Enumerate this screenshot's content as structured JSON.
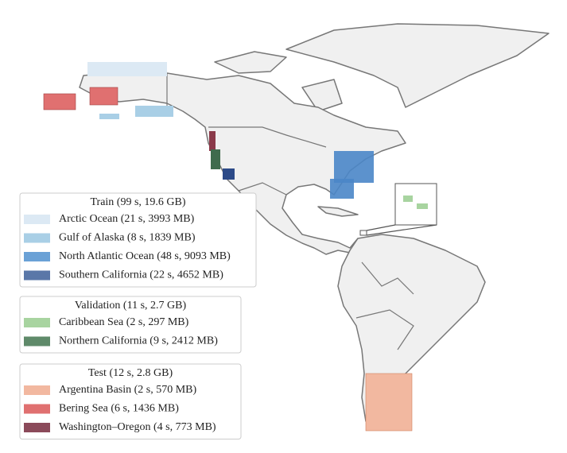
{
  "legends": [
    {
      "title": "Train (99 s, 19.6 GB)",
      "entries": [
        {
          "label": "Arctic Ocean (21 s, 3993 MB)",
          "color": "#dce9f4"
        },
        {
          "label": "Gulf of Alaska (8 s, 1839 MB)",
          "color": "#a9cfe6"
        },
        {
          "label": "North Atlantic Ocean (48 s, 9093 MB)",
          "color": "#6aa1d6"
        },
        {
          "label": "Southern California (22 s, 4652 MB)",
          "color": "#5a77a8"
        }
      ]
    },
    {
      "title": "Validation (11 s, 2.7 GB)",
      "entries": [
        {
          "label": "Caribbean Sea (2 s, 297 MB)",
          "color": "#a8d4a0"
        },
        {
          "label": "Northern California (9 s, 2412 MB)",
          "color": "#5f8a6a"
        }
      ]
    },
    {
      "title": "Test (12 s, 2.8 GB)",
      "entries": [
        {
          "label": "Argentina Basin (2 s, 570 MB)",
          "color": "#f2b8a0"
        },
        {
          "label": "Bering Sea (6 s, 1436 MB)",
          "color": "#e07070"
        },
        {
          "label": "Washington–Oregon (4 s, 773 MB)",
          "color": "#8b4a5a"
        }
      ]
    }
  ]
}
